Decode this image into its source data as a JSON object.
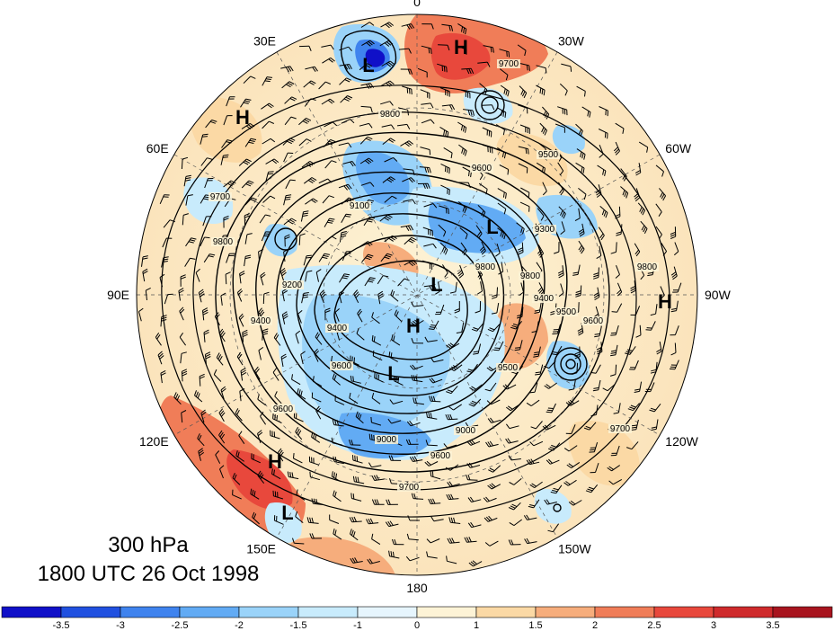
{
  "map": {
    "level": "300 hPa",
    "datetime": "1800 UTC 26 Oct 1998",
    "longitude_labels": [
      {
        "text": "0",
        "lon": 0
      },
      {
        "text": "30W",
        "lon": -30
      },
      {
        "text": "60W",
        "lon": -60
      },
      {
        "text": "90W",
        "lon": -90
      },
      {
        "text": "120W",
        "lon": -120
      },
      {
        "text": "150W",
        "lon": -150
      },
      {
        "text": "180",
        "lon": 180
      },
      {
        "text": "150E",
        "lon": 150
      },
      {
        "text": "120E",
        "lon": 120
      },
      {
        "text": "90E",
        "lon": 90
      },
      {
        "text": "60E",
        "lon": 60
      },
      {
        "text": "30E",
        "lon": 30
      }
    ],
    "pressure_centers": [
      {
        "type": "L",
        "id": "low-north-atlantic"
      },
      {
        "type": "H",
        "id": "high-iceland"
      },
      {
        "type": "H",
        "id": "high-europe"
      },
      {
        "type": "L",
        "id": "low-hudson-bay"
      },
      {
        "type": "L",
        "id": "low-arctic"
      },
      {
        "type": "H",
        "id": "high-arctic"
      },
      {
        "type": "L",
        "id": "low-siberia"
      },
      {
        "type": "H",
        "id": "high-east-pacific"
      },
      {
        "type": "H",
        "id": "high-east-asia"
      },
      {
        "type": "L",
        "id": "low-west-pacific"
      }
    ],
    "contour_labels": [
      "9700",
      "9800",
      "9600",
      "9500",
      "9300",
      "9100",
      "9200",
      "9400",
      "9000",
      "9500",
      "9600",
      "9700",
      "9700",
      "9800",
      "9800",
      "9800",
      "9700",
      "9800",
      "9600",
      "9500",
      "9400",
      "9000",
      "9600",
      "9600",
      "9400"
    ]
  },
  "colorbar": {
    "colors": [
      "#1010c8",
      "#2050e0",
      "#3f83ee",
      "#62abf4",
      "#9ad3f9",
      "#c8ebfc",
      "#e6f5fd",
      "#fdf3d6",
      "#fbd9a5",
      "#f6ad7c",
      "#f07d58",
      "#e8483c",
      "#cf2a2c",
      "#a8141e"
    ],
    "ticks": [
      "-3.5",
      "-3",
      "-2.5",
      "-2",
      "-1.5",
      "-1",
      "0",
      "1",
      "1.5",
      "2",
      "2.5",
      "3",
      "3.5"
    ]
  }
}
